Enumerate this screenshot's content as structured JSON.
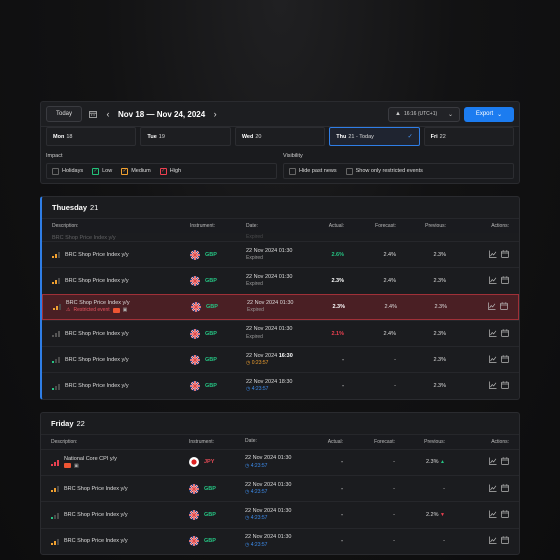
{
  "toolbar": {
    "today_label": "Today",
    "date_range": "Nov 18 — Nov 24, 2024",
    "timezone": "16:16 (UTC+1)",
    "export_label": "Export"
  },
  "day_tabs": [
    {
      "day": "Mon",
      "num": "18"
    },
    {
      "day": "Tue",
      "num": "19"
    },
    {
      "day": "Wed",
      "num": "20"
    },
    {
      "day": "Thu",
      "num": "21 - Today"
    },
    {
      "day": "Fri",
      "num": "22"
    }
  ],
  "filters": {
    "impact_title": "Impact",
    "impact_options": [
      "Holidays",
      "Low",
      "Medium",
      "High"
    ],
    "visibility_title": "Visibility",
    "visibility_options": [
      "Hide past news",
      "Show only restricted events"
    ]
  },
  "columns": {
    "description": "Description:",
    "instrument": "Instrument:",
    "date": "Date:",
    "actual": "Actual:",
    "forecast": "Forecast:",
    "previous": "Previous:",
    "actions": "Actions:"
  },
  "thursday": {
    "day": "Thuesday",
    "num": "21",
    "partial_row": {
      "desc": "BRC Shop Price Index y/y",
      "date_sub": "Expired"
    },
    "rows": [
      {
        "desc": "BRC Shop Price Index y/y",
        "cur": "GBP",
        "date": "22 Nov 2024 01:30",
        "sub": "Expired",
        "actual": "2.6%",
        "forecast": "2.4%",
        "previous": "2.3%"
      },
      {
        "desc": "BRC Shop Price Index y/y",
        "cur": "GBP",
        "date": "22 Nov 2024 01:30",
        "sub": "Expired",
        "actual": "2.3%",
        "forecast": "2.4%",
        "previous": "2.3%"
      },
      {
        "desc": "BRC Shop Price Index y/y",
        "restricted": "Restricted event",
        "cur": "GBP",
        "date": "22 Nov 2024 01:30",
        "sub": "Expired",
        "actual": "2.3%",
        "forecast": "2.4%",
        "previous": "2.3%"
      },
      {
        "desc": "BRC Shop Price Index y/y",
        "cur": "GBP",
        "date": "22 Nov 2024 01:30",
        "sub": "Expired",
        "actual": "2.1%",
        "forecast": "2.4%",
        "previous": "2.3%"
      },
      {
        "desc": "BRC Shop Price Index y/y",
        "cur": "GBP",
        "date": "22 Nov 2024",
        "date_time": "16:30",
        "sub": "0:23:57",
        "actual": "-",
        "forecast": "-",
        "previous": "2.3%"
      },
      {
        "desc": "BRC Shop Price Index y/y",
        "cur": "GBP",
        "date": "22 Nov 2024 18:30",
        "sub": "4:23:57",
        "actual": "-",
        "forecast": "-",
        "previous": "2.3%"
      }
    ]
  },
  "friday": {
    "day": "Friday",
    "num": "22",
    "rows": [
      {
        "desc": "National Core CPI y/y",
        "cur": "JPY",
        "date": "22 Nov 2024 01:30",
        "sub": "4:23:57",
        "actual": "-",
        "forecast": "-",
        "previous": "2.3%"
      },
      {
        "desc": "BRC Shop Price Index y/y",
        "cur": "GBP",
        "date": "22 Nov 2024 01:30",
        "sub": "4:23:57",
        "actual": "-",
        "forecast": "-",
        "previous": "-"
      },
      {
        "desc": "BRC Shop Price Index y/y",
        "cur": "GBP",
        "date": "22 Nov 2024 01:30",
        "sub": "4:23:57",
        "actual": "-",
        "forecast": "-",
        "previous": "2.2%"
      },
      {
        "desc": "BRC Shop Price Index y/y",
        "cur": "GBP",
        "date": "22 Nov 2024 01:30",
        "sub": "4:23:57",
        "actual": "-",
        "forecast": "-",
        "previous": "-"
      }
    ]
  },
  "colors": {
    "accent": "#1c7cf0",
    "positive": "#25c483",
    "negative": "#ee4050",
    "warning": "#f0a030",
    "restricted_bg": "#4a1f24"
  }
}
